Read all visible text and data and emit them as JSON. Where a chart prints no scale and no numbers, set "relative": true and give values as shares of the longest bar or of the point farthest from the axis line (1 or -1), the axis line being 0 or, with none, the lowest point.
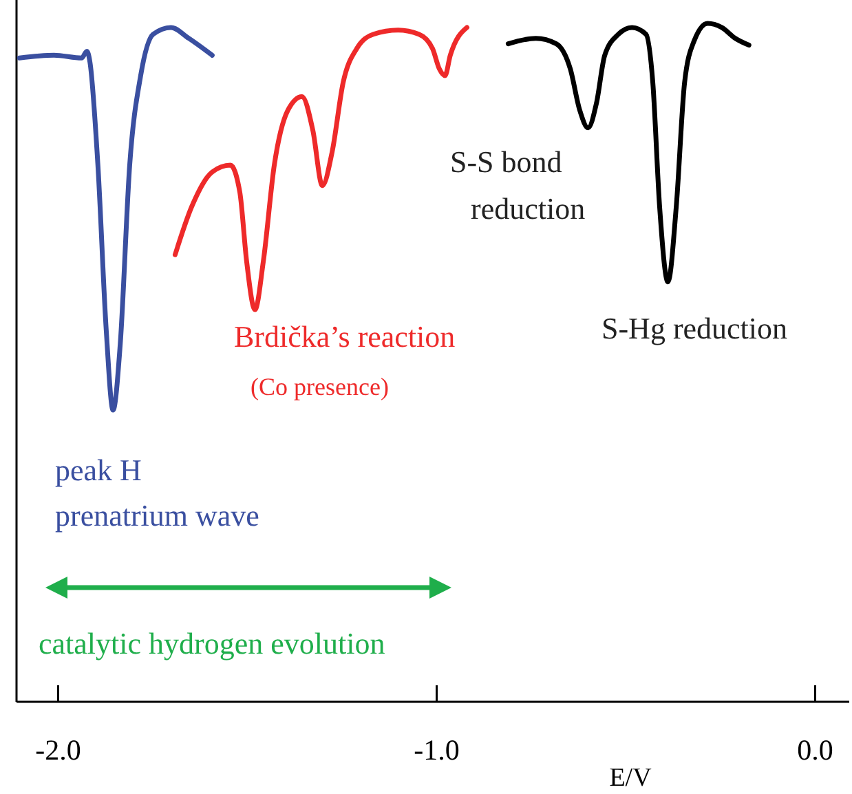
{
  "chart_data": {
    "type": "line",
    "xlabel": "E/V",
    "relative": true,
    "xlim": [
      -2.11,
      0.09
    ],
    "xticks": [
      {
        "value": -2.0,
        "label": "-2.0"
      },
      {
        "value": -1.0,
        "label": "-1.0"
      },
      {
        "value": 0.0,
        "label": "0.0"
      }
    ],
    "grid": false,
    "marker": "none",
    "line_style": "solid",
    "series": [
      {
        "color": "#3a4fa0",
        "x": [
          -2.102,
          -2.011,
          -1.938,
          -1.924,
          -1.916,
          -1.895,
          -1.873,
          -1.855,
          -1.836,
          -1.811,
          -1.782,
          -1.749,
          -1.702,
          -1.655,
          -1.593
        ],
        "values": [
          0.949,
          0.953,
          0.949,
          0.959,
          0.943,
          0.791,
          0.548,
          0.43,
          0.527,
          0.791,
          0.923,
          0.984,
          0.994,
          0.978,
          0.953
        ]
      },
      {
        "color": "#ee2a2a",
        "x": [
          -1.691,
          -1.647,
          -1.593,
          -1.545,
          -1.52,
          -1.502,
          -1.48,
          -1.458,
          -1.429,
          -1.393,
          -1.356,
          -1.327,
          -1.302,
          -1.276,
          -1.247,
          -1.211,
          -1.167,
          -1.102,
          -1.047,
          -1.011,
          -0.993,
          -0.978,
          -0.964,
          -0.92
        ],
        "values": [
          0.659,
          0.73,
          0.781,
          0.791,
          0.751,
          0.649,
          0.578,
          0.649,
          0.791,
          0.872,
          0.892,
          0.842,
          0.761,
          0.811,
          0.913,
          0.963,
          0.984,
          0.99,
          0.984,
          0.963,
          0.933,
          0.923,
          0.953,
          0.994
        ]
      },
      {
        "color": "#000000",
        "x": [
          -0.811,
          -0.738,
          -0.684,
          -0.647,
          -0.622,
          -0.6,
          -0.578,
          -0.556,
          -0.52,
          -0.484,
          -0.447,
          -0.429,
          -0.411,
          -0.389,
          -0.367,
          -0.345,
          -0.32,
          -0.284,
          -0.247,
          -0.211,
          -0.175
        ],
        "values": [
          0.97,
          0.978,
          0.97,
          0.933,
          0.872,
          0.846,
          0.882,
          0.953,
          0.984,
          0.994,
          0.984,
          0.913,
          0.73,
          0.619,
          0.73,
          0.913,
          0.974,
          1.0,
          0.994,
          0.978,
          0.968
        ]
      }
    ],
    "annotations": [
      "peak H",
      "prenatrium wave",
      "Brdička’s reaction",
      "(Co presence)",
      "S-S bond",
      "reduction",
      "S-Hg reduction",
      "catalytic hydrogen evolution"
    ]
  }
}
